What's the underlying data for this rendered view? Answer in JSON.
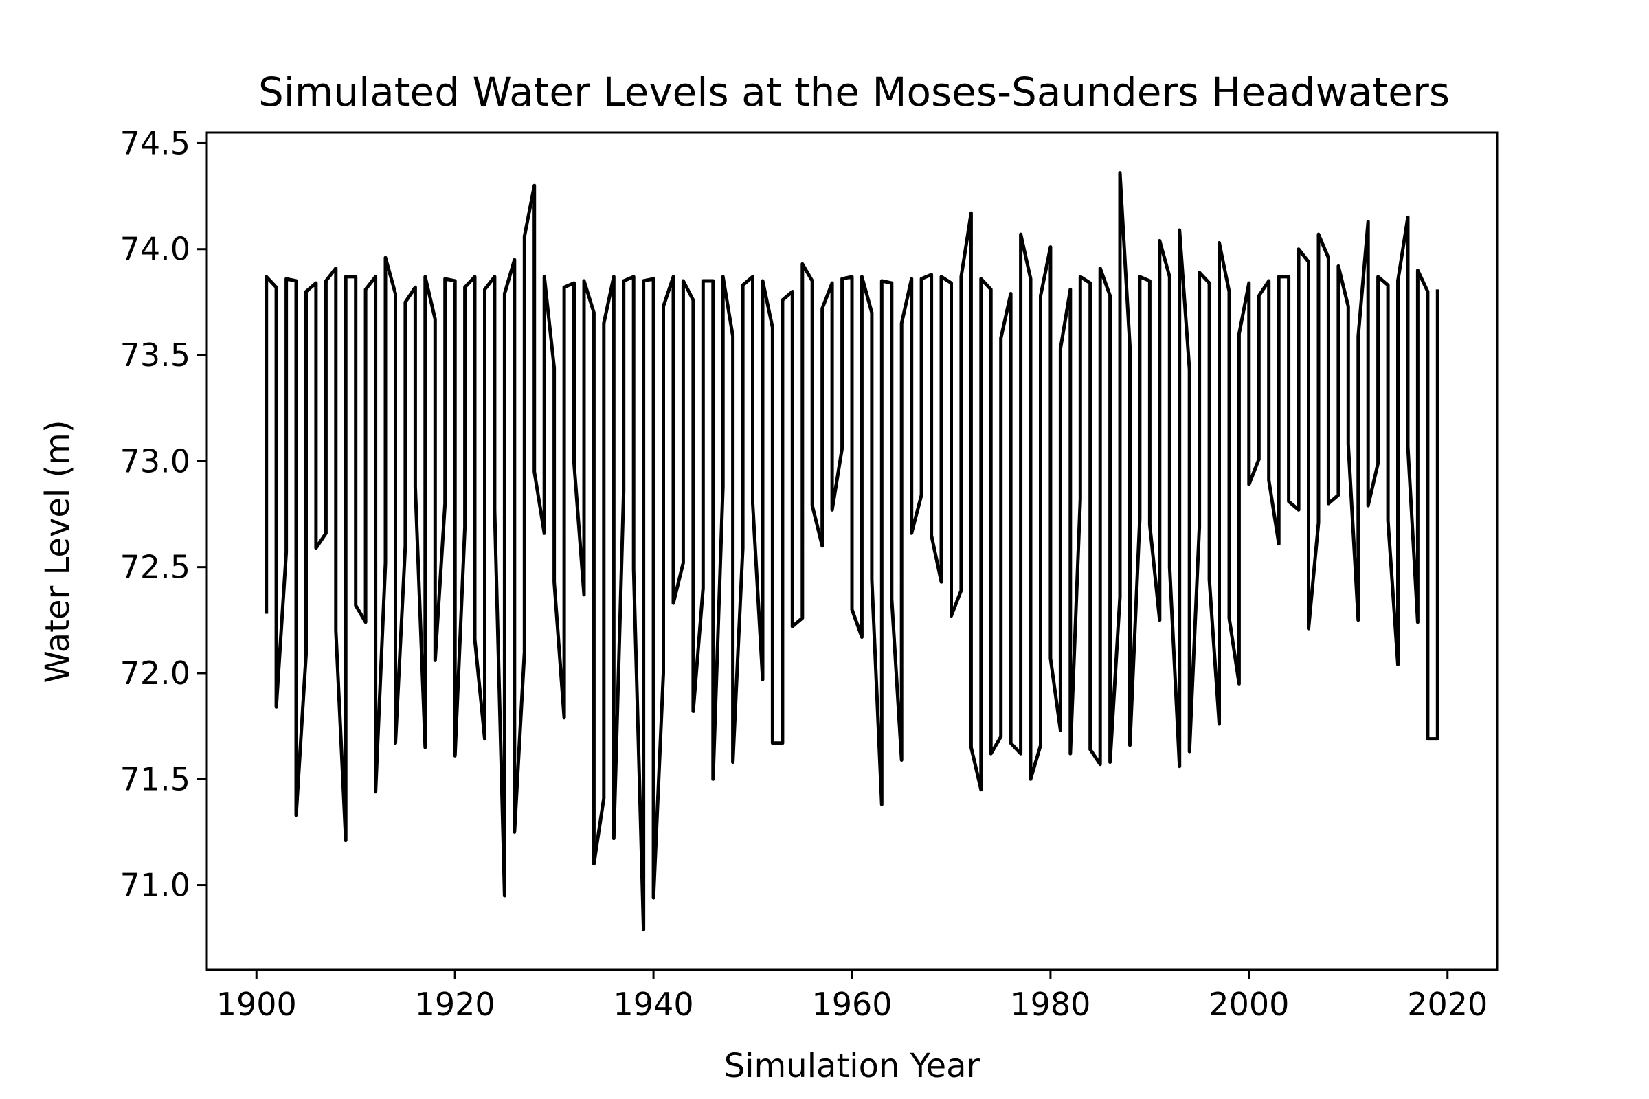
{
  "chart_data": {
    "type": "line",
    "title": "Simulated Water Levels at the Moses-Saunders Headwaters",
    "xlabel": "Simulation Year",
    "ylabel": "Water Level (m)",
    "xlim": [
      1895,
      2025
    ],
    "ylim": [
      70.6,
      74.55
    ],
    "xticks": [
      1900,
      1920,
      1940,
      1960,
      1980,
      2000,
      2020
    ],
    "xtick_labels": [
      "1900",
      "1920",
      "1940",
      "1960",
      "1980",
      "2000",
      "2020"
    ],
    "yticks": [
      71.0,
      71.5,
      72.0,
      72.5,
      73.0,
      73.5,
      74.0,
      74.5
    ],
    "ytick_labels": [
      "71.0",
      "71.5",
      "72.0",
      "72.5",
      "73.0",
      "73.5",
      "74.0",
      "74.5"
    ],
    "grid": false,
    "line_color": "#000000",
    "series": [
      {
        "name": "",
        "description": "Per simulation year the level jumps between an annual low and an annual high; each year is [year, low, high].",
        "annual_ranges": [
          [
            1901,
            72.28,
            73.87
          ],
          [
            1902,
            71.84,
            73.82
          ],
          [
            1903,
            72.57,
            73.86
          ],
          [
            1904,
            71.33,
            73.85
          ],
          [
            1905,
            72.09,
            73.8
          ],
          [
            1906,
            72.59,
            73.84
          ],
          [
            1907,
            72.66,
            73.85
          ],
          [
            1908,
            72.2,
            73.91
          ],
          [
            1909,
            71.21,
            73.87
          ],
          [
            1910,
            72.32,
            73.87
          ],
          [
            1911,
            72.24,
            73.81
          ],
          [
            1912,
            71.44,
            73.87
          ],
          [
            1913,
            72.52,
            73.96
          ],
          [
            1914,
            71.67,
            73.79
          ],
          [
            1915,
            72.6,
            73.75
          ],
          [
            1916,
            72.88,
            73.82
          ],
          [
            1917,
            71.65,
            73.87
          ],
          [
            1918,
            72.06,
            73.67
          ],
          [
            1919,
            72.8,
            73.86
          ],
          [
            1920,
            71.61,
            73.85
          ],
          [
            1921,
            72.69,
            73.82
          ],
          [
            1922,
            72.16,
            73.87
          ],
          [
            1923,
            71.69,
            73.81
          ],
          [
            1924,
            72.77,
            73.87
          ],
          [
            1925,
            70.95,
            73.79
          ],
          [
            1926,
            71.25,
            73.95
          ],
          [
            1927,
            72.1,
            74.06
          ],
          [
            1928,
            72.95,
            74.3
          ],
          [
            1929,
            72.66,
            73.87
          ],
          [
            1930,
            72.43,
            73.44
          ],
          [
            1931,
            71.79,
            73.82
          ],
          [
            1932,
            72.99,
            73.84
          ],
          [
            1933,
            72.37,
            73.85
          ],
          [
            1934,
            71.1,
            73.7
          ],
          [
            1935,
            71.41,
            73.65
          ],
          [
            1936,
            71.22,
            73.87
          ],
          [
            1937,
            72.86,
            73.85
          ],
          [
            1938,
            72.49,
            73.87
          ],
          [
            1939,
            70.79,
            73.85
          ],
          [
            1940,
            70.94,
            73.86
          ],
          [
            1941,
            72.0,
            73.73
          ],
          [
            1942,
            72.33,
            73.87
          ],
          [
            1943,
            72.52,
            73.85
          ],
          [
            1944,
            71.82,
            73.76
          ],
          [
            1945,
            72.4,
            73.85
          ],
          [
            1946,
            71.5,
            73.85
          ],
          [
            1947,
            72.88,
            73.87
          ],
          [
            1948,
            71.58,
            73.59
          ],
          [
            1949,
            72.59,
            73.83
          ],
          [
            1950,
            72.8,
            73.87
          ],
          [
            1951,
            71.97,
            73.85
          ],
          [
            1952,
            71.67,
            73.63
          ],
          [
            1953,
            71.67,
            73.76
          ],
          [
            1954,
            72.22,
            73.8
          ],
          [
            1955,
            72.26,
            73.93
          ],
          [
            1956,
            72.79,
            73.85
          ],
          [
            1957,
            72.6,
            73.72
          ],
          [
            1958,
            72.77,
            73.84
          ],
          [
            1959,
            73.06,
            73.86
          ],
          [
            1960,
            72.3,
            73.87
          ],
          [
            1961,
            72.17,
            73.87
          ],
          [
            1962,
            72.44,
            73.7
          ],
          [
            1963,
            71.38,
            73.85
          ],
          [
            1964,
            72.35,
            73.84
          ],
          [
            1965,
            71.59,
            73.65
          ],
          [
            1966,
            72.66,
            73.86
          ],
          [
            1967,
            72.84,
            73.86
          ],
          [
            1968,
            72.65,
            73.88
          ],
          [
            1969,
            72.43,
            73.87
          ],
          [
            1970,
            72.27,
            73.84
          ],
          [
            1971,
            72.39,
            73.87
          ],
          [
            1972,
            71.65,
            74.17
          ],
          [
            1973,
            71.45,
            73.86
          ],
          [
            1974,
            71.62,
            73.81
          ],
          [
            1975,
            71.7,
            73.58
          ],
          [
            1976,
            71.67,
            73.79
          ],
          [
            1977,
            71.62,
            74.07
          ],
          [
            1978,
            71.5,
            73.86
          ],
          [
            1979,
            71.66,
            73.78
          ],
          [
            1980,
            72.07,
            74.01
          ],
          [
            1981,
            71.73,
            73.53
          ],
          [
            1982,
            71.62,
            73.81
          ],
          [
            1983,
            72.82,
            73.87
          ],
          [
            1984,
            71.64,
            73.84
          ],
          [
            1985,
            71.57,
            73.91
          ],
          [
            1986,
            71.58,
            73.78
          ],
          [
            1987,
            72.36,
            74.36
          ],
          [
            1988,
            71.66,
            73.54
          ],
          [
            1989,
            72.73,
            73.87
          ],
          [
            1990,
            72.7,
            73.85
          ],
          [
            1991,
            72.25,
            74.04
          ],
          [
            1992,
            72.5,
            73.87
          ],
          [
            1993,
            71.56,
            74.09
          ],
          [
            1994,
            71.63,
            73.43
          ],
          [
            1995,
            72.69,
            73.89
          ],
          [
            1996,
            72.44,
            73.84
          ],
          [
            1997,
            71.76,
            74.03
          ],
          [
            1998,
            72.26,
            73.8
          ],
          [
            1999,
            71.95,
            73.6
          ],
          [
            2000,
            72.89,
            73.84
          ],
          [
            2001,
            73.01,
            73.78
          ],
          [
            2002,
            72.91,
            73.85
          ],
          [
            2003,
            72.61,
            73.87
          ],
          [
            2004,
            72.81,
            73.87
          ],
          [
            2005,
            72.77,
            74.0
          ],
          [
            2006,
            72.21,
            73.94
          ],
          [
            2007,
            72.71,
            74.07
          ],
          [
            2008,
            72.8,
            73.96
          ],
          [
            2009,
            72.84,
            73.92
          ],
          [
            2010,
            73.08,
            73.73
          ],
          [
            2011,
            72.25,
            73.59
          ],
          [
            2012,
            72.79,
            74.13
          ],
          [
            2013,
            72.99,
            73.87
          ],
          [
            2014,
            72.72,
            73.83
          ],
          [
            2015,
            72.04,
            73.85
          ],
          [
            2016,
            73.07,
            74.15
          ],
          [
            2017,
            72.24,
            73.9
          ],
          [
            2018,
            71.69,
            73.8
          ],
          [
            2019,
            71.69,
            73.81
          ]
        ]
      }
    ]
  }
}
